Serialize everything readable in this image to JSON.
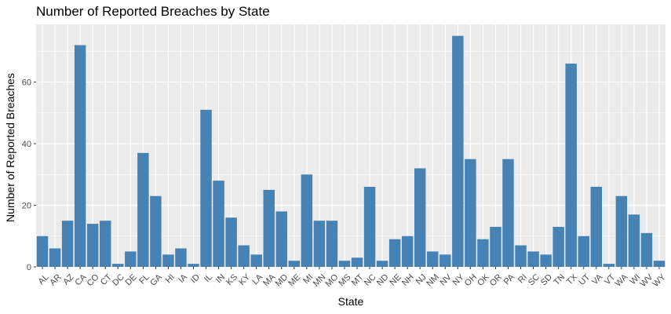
{
  "chart_data": {
    "type": "bar",
    "title": "Number of Reported Breaches by State",
    "xlabel": "State",
    "ylabel": "Number of Reported Breaches",
    "categories": [
      "AL",
      "AR",
      "AZ",
      "CA",
      "CO",
      "CT",
      "DC",
      "DE",
      "FL",
      "GA",
      "HI",
      "IA",
      "ID",
      "IL",
      "IN",
      "KS",
      "KY",
      "LA",
      "MA",
      "MD",
      "ME",
      "MI",
      "MN",
      "MO",
      "MS",
      "MT",
      "NC",
      "ND",
      "NE",
      "NH",
      "NJ",
      "NM",
      "NV",
      "NY",
      "OH",
      "OK",
      "OR",
      "PA",
      "RI",
      "SC",
      "SD",
      "TN",
      "TX",
      "UT",
      "VA",
      "VT",
      "WA",
      "WI",
      "WV",
      "WY"
    ],
    "values": [
      10,
      6,
      15,
      72,
      14,
      15,
      1,
      5,
      37,
      23,
      4,
      6,
      1,
      51,
      28,
      16,
      7,
      4,
      25,
      18,
      2,
      30,
      15,
      15,
      2,
      3,
      26,
      2,
      9,
      10,
      32,
      5,
      4,
      75,
      35,
      9,
      13,
      35,
      7,
      5,
      4,
      13,
      66,
      10,
      26,
      1,
      23,
      17,
      11,
      2
    ],
    "ylim": [
      0,
      78.75
    ],
    "yticks": [
      0,
      20,
      40,
      60
    ],
    "ytick_labels": [
      "0",
      "20",
      "40",
      "60"
    ],
    "grid": true,
    "colors": {
      "bar": "#4682B4",
      "panel": "#EBEBEB",
      "grid_major": "#FFFFFF",
      "tick_text": "#4D4D4D",
      "tick_mark": "#333333"
    }
  }
}
